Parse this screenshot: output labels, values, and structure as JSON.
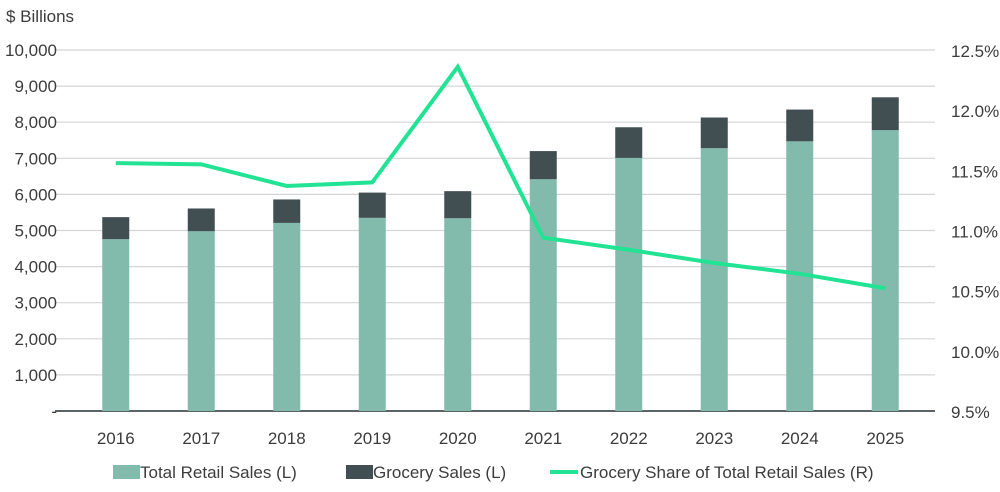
{
  "chart_data": {
    "type": "bar",
    "unit_label": "$ Billions",
    "categories": [
      "2016",
      "2017",
      "2018",
      "2019",
      "2020",
      "2021",
      "2022",
      "2023",
      "2024",
      "2025"
    ],
    "series": [
      {
        "name": "Total Retail Sales (L)",
        "type": "stacked-bar",
        "axis": "left",
        "color": "#82BAAC",
        "values": [
          4760,
          4980,
          5210,
          5350,
          5340,
          6420,
          7010,
          7280,
          7470,
          7780
        ]
      },
      {
        "name": "Grocery Sales (L)",
        "type": "stacked-bar",
        "axis": "left",
        "color": "#414F52",
        "values": [
          610,
          630,
          650,
          700,
          750,
          780,
          850,
          850,
          880,
          910
        ]
      },
      {
        "name": "Grocery Share of Total Retail Sales (R)",
        "type": "line",
        "axis": "right",
        "color": "#22E394",
        "values": [
          11.56,
          11.55,
          11.37,
          11.4,
          12.36,
          10.94,
          10.84,
          10.73,
          10.64,
          10.52
        ]
      }
    ],
    "left_axis": {
      "ylim": [
        0,
        10000
      ],
      "ticks": [
        "-",
        "1,000",
        "2,000",
        "3,000",
        "4,000",
        "5,000",
        "6,000",
        "7,000",
        "8,000",
        "9,000",
        "10,000"
      ]
    },
    "right_axis": {
      "ylim": [
        9.5,
        12.5
      ],
      "ticks": [
        "9.5%",
        "10.0%",
        "10.5%",
        "11.0%",
        "11.5%",
        "12.0%",
        "12.5%"
      ]
    },
    "grid": true,
    "legend_position": "bottom"
  }
}
